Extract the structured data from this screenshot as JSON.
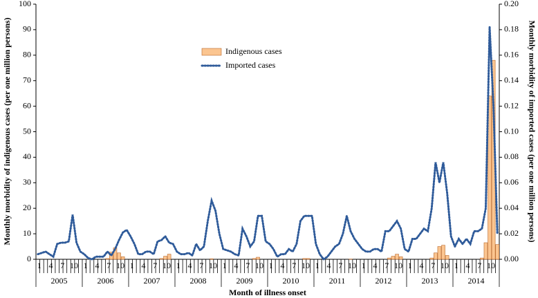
{
  "chart_data": {
    "type": "bar",
    "y_label": "Monthly morbidity of indigenous cases (per one million persons)",
    "y2_label": "Monthly morbidity of imported cases (per one million persons)",
    "x_label": "Month of illness onset",
    "categories": [
      "1",
      null,
      null,
      "4",
      null,
      null,
      "7",
      null,
      null,
      "10",
      null,
      null,
      "1",
      null,
      null,
      "4",
      null,
      null,
      "7",
      null,
      null,
      "10",
      null,
      null,
      "1",
      null,
      null,
      "4",
      null,
      null,
      "7",
      null,
      null,
      "10",
      null,
      null,
      "1",
      null,
      null,
      "4",
      null,
      null,
      "7",
      null,
      null,
      "10",
      null,
      null,
      "1",
      null,
      null,
      "4",
      null,
      null,
      "7",
      null,
      null,
      "10",
      null,
      null,
      "1",
      null,
      null,
      "4",
      null,
      null,
      "7",
      null,
      null,
      "10",
      null,
      null,
      "1",
      null,
      null,
      "4",
      null,
      null,
      "7",
      null,
      null,
      "10",
      null,
      null,
      "1",
      null,
      null,
      "4",
      null,
      null,
      "7",
      null,
      null,
      "10",
      null,
      null,
      "1",
      null,
      null,
      "4",
      null,
      null,
      "7",
      null,
      null,
      "10",
      null,
      null,
      "1",
      null,
      null,
      "4",
      null,
      null,
      "7",
      null,
      null,
      "10",
      null,
      null
    ],
    "years": [
      "2005",
      "2006",
      "2007",
      "2008",
      "2009",
      "2010",
      "2011",
      "2012",
      "2013",
      "2014"
    ],
    "series": [
      {
        "name": "Indigenous cases",
        "type": "bar",
        "color": "#fbc590",
        "values": [
          0,
          0,
          0,
          0,
          0,
          0,
          0,
          0,
          0,
          0,
          0,
          0,
          0,
          0,
          0,
          0,
          0,
          0,
          0.3,
          2.8,
          4.5,
          2.5,
          1,
          0,
          0,
          0,
          0,
          0,
          0,
          0,
          0,
          0,
          0.3,
          1.2,
          2,
          0,
          0,
          0,
          0,
          0,
          0,
          0,
          0,
          0,
          0,
          0.2,
          0,
          0,
          0,
          0,
          0,
          0,
          0,
          0,
          0,
          0,
          0.3,
          0.8,
          0,
          0,
          0,
          0,
          0,
          0,
          0,
          0,
          0,
          0,
          0,
          0.3,
          0.3,
          0,
          0,
          0,
          0,
          0,
          0,
          0,
          0,
          0,
          0,
          0.1,
          0,
          0,
          0,
          0,
          0,
          0,
          0,
          0,
          0,
          0.5,
          1.2,
          2,
          1,
          0,
          0,
          0,
          0,
          0,
          0,
          0,
          0.5,
          2.5,
          5,
          5.5,
          1.5,
          0,
          0,
          0,
          0,
          0,
          0,
          0,
          0,
          0.5,
          6.5,
          64,
          78,
          5.8
        ]
      },
      {
        "name": "Imported cases",
        "type": "line",
        "axis": "y2",
        "color": "#2f5b9a",
        "values": [
          0.004,
          0.005,
          0.006,
          0.004,
          0.002,
          0.012,
          0.013,
          0.013,
          0.014,
          0.035,
          0.013,
          0.006,
          0.004,
          0.001,
          0,
          0.002,
          0.002,
          0.002,
          0.006,
          0.003,
          0.008,
          0.015,
          0.021,
          0.023,
          0.018,
          0.012,
          0.004,
          0.004,
          0.006,
          0.006,
          0.004,
          0.014,
          0.015,
          0.018,
          0.013,
          0.012,
          0.006,
          0.004,
          0.004,
          0.005,
          0.003,
          0.012,
          0.007,
          0.01,
          0.03,
          0.046,
          0.038,
          0.02,
          0.008,
          0.007,
          0.006,
          0.004,
          0.003,
          0.024,
          0.018,
          0.01,
          0.014,
          0.034,
          0.034,
          0.014,
          0.012,
          0.008,
          0.002,
          0.004,
          0.004,
          0.008,
          0.006,
          0.012,
          0.03,
          0.034,
          0.034,
          0.034,
          0.012,
          0.004,
          0,
          0.002,
          0.006,
          0.01,
          0.012,
          0.02,
          0.034,
          0.022,
          0.016,
          0.012,
          0.008,
          0.006,
          0.006,
          0.008,
          0.008,
          0.006,
          0.022,
          0.022,
          0.026,
          0.03,
          0.024,
          0.008,
          0.006,
          0.016,
          0.016,
          0.02,
          0.024,
          0.022,
          0.04,
          0.076,
          0.06,
          0.076,
          0.052,
          0.018,
          0.01,
          0.016,
          0.012,
          0.016,
          0.012,
          0.022,
          0.022,
          0.024,
          0.04,
          0.182,
          0.12,
          0.02
        ]
      }
    ],
    "ylim": [
      0,
      100
    ],
    "yticks": [
      0,
      10,
      20,
      30,
      40,
      50,
      60,
      70,
      80,
      90,
      100
    ],
    "y2lim": [
      0,
      0.2
    ],
    "y2ticks": [
      {
        "value": 0,
        "label": "0.00"
      },
      {
        "value": 0.02,
        "label": "0.02"
      },
      {
        "value": 0.04,
        "label": "0.04"
      },
      {
        "value": 0.06,
        "label": "0.06"
      },
      {
        "value": 0.08,
        "label": "0.08"
      },
      {
        "value": 0.1,
        "label": "0.10"
      },
      {
        "value": 0.12,
        "label": "0.12"
      },
      {
        "value": 0.14,
        "label": "0.14"
      },
      {
        "value": 0.16,
        "label": "0.16"
      },
      {
        "value": 0.18,
        "label": "0.18"
      },
      {
        "value": 0.2,
        "label": "0.20"
      }
    ],
    "grid": false,
    "legend": "upper center"
  }
}
